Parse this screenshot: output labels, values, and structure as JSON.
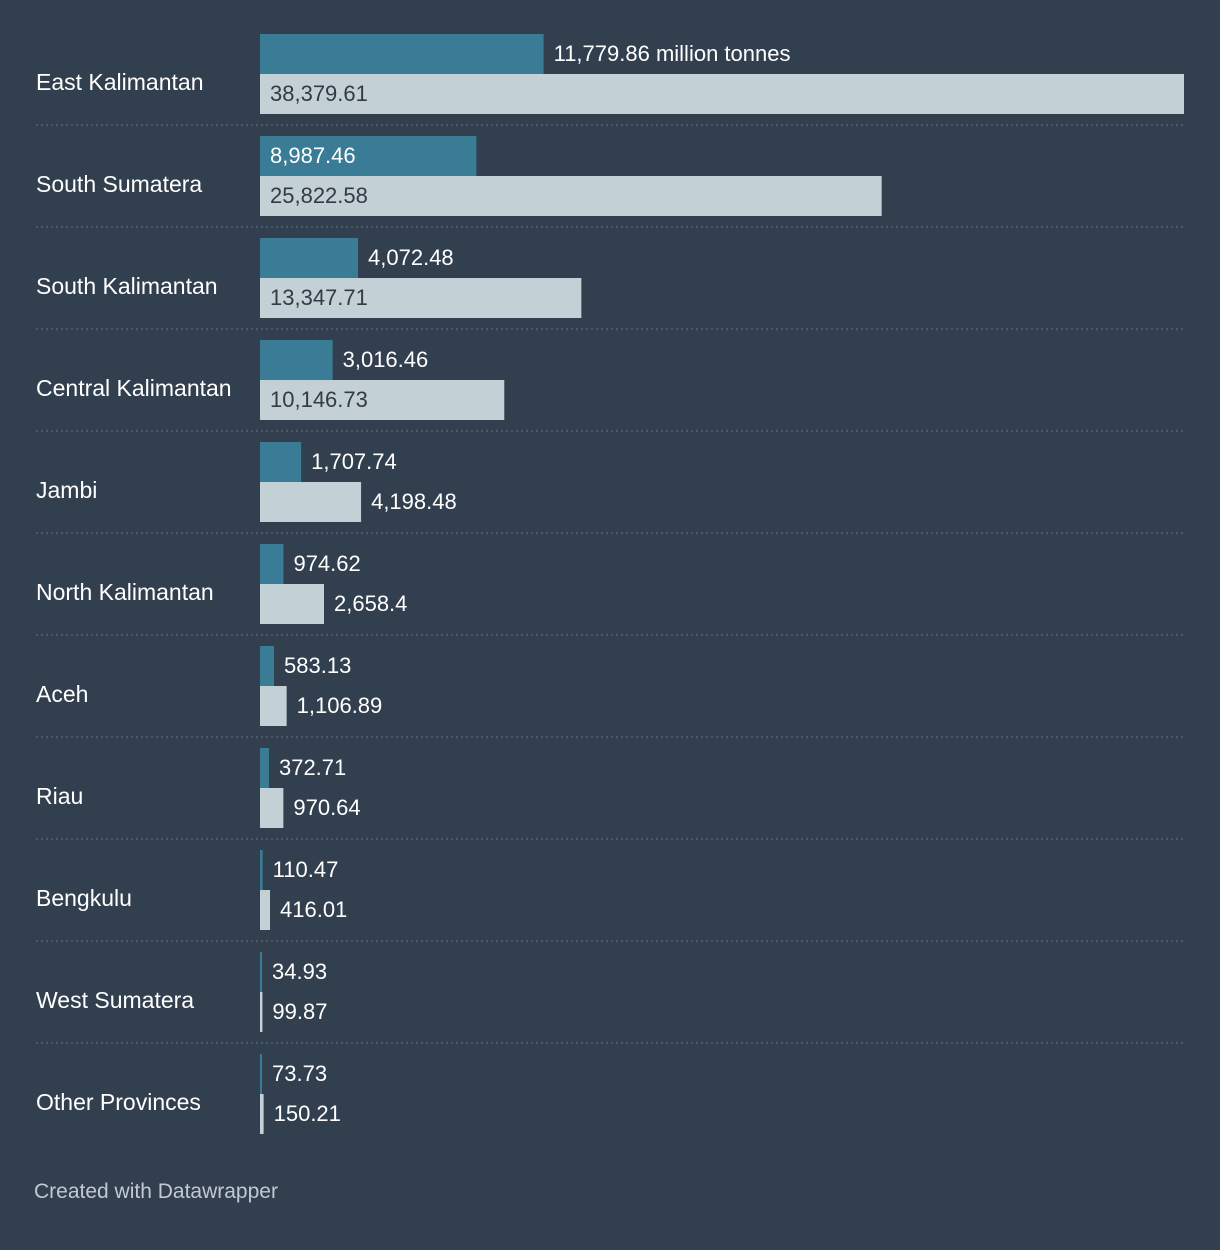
{
  "chart_data": {
    "type": "bar",
    "orientation": "horizontal",
    "layout": "grouped",
    "categories": [
      "East Kalimantan",
      "South Sumatera",
      "South Kalimantan",
      "Central Kalimantan",
      "Jambi",
      "North Kalimantan",
      "Aceh",
      "Riau",
      "Bengkulu",
      "West Sumatera",
      "Other Provinces"
    ],
    "series": [
      {
        "name": "series-1",
        "color": "#3a7c96",
        "values": [
          11779.86,
          8987.46,
          4072.48,
          3016.46,
          1707.74,
          974.62,
          583.13,
          372.71,
          110.47,
          34.93,
          73.73
        ],
        "labels": [
          "11,779.86",
          "8,987.46",
          "4,072.48",
          "3,016.46",
          "1,707.74",
          "974.62",
          "583.13",
          "372.71",
          "110.47",
          "34.93",
          "73.73"
        ]
      },
      {
        "name": "series-2",
        "color": "#c3d0d5",
        "values": [
          38379.61,
          25822.58,
          13347.71,
          10146.73,
          4198.48,
          2658.4,
          1106.89,
          970.64,
          416.01,
          99.87,
          150.21
        ],
        "labels": [
          "38,379.61",
          "25,822.58",
          "13,347.71",
          "10,146.73",
          "4,198.48",
          "2,658.4",
          "1,106.89",
          "970.64",
          "416.01",
          "99.87",
          "150.21"
        ]
      }
    ],
    "unit_suffix": " million tonnes",
    "xlim": [
      0,
      38379.61
    ],
    "grid": false,
    "legend": "none"
  },
  "footer": {
    "credit": "Created with Datawrapper"
  }
}
